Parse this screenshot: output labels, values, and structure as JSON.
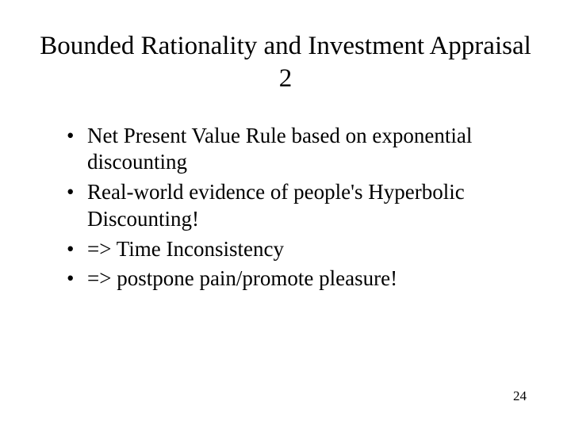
{
  "title": "Bounded Rationality and Investment Appraisal 2",
  "bullets": [
    "Net Present Value Rule based on exponential discounting",
    "Real-world evidence of people's Hyperbolic Discounting!",
    "=> Time Inconsistency",
    "=> postpone pain/promote pleasure!"
  ],
  "pageNumber": "24",
  "colors": {
    "background": "#ffffff",
    "text": "#000000"
  },
  "fonts": {
    "title_size": 33,
    "bullet_size": 27,
    "page_number_size": 17,
    "family": "Times New Roman"
  }
}
